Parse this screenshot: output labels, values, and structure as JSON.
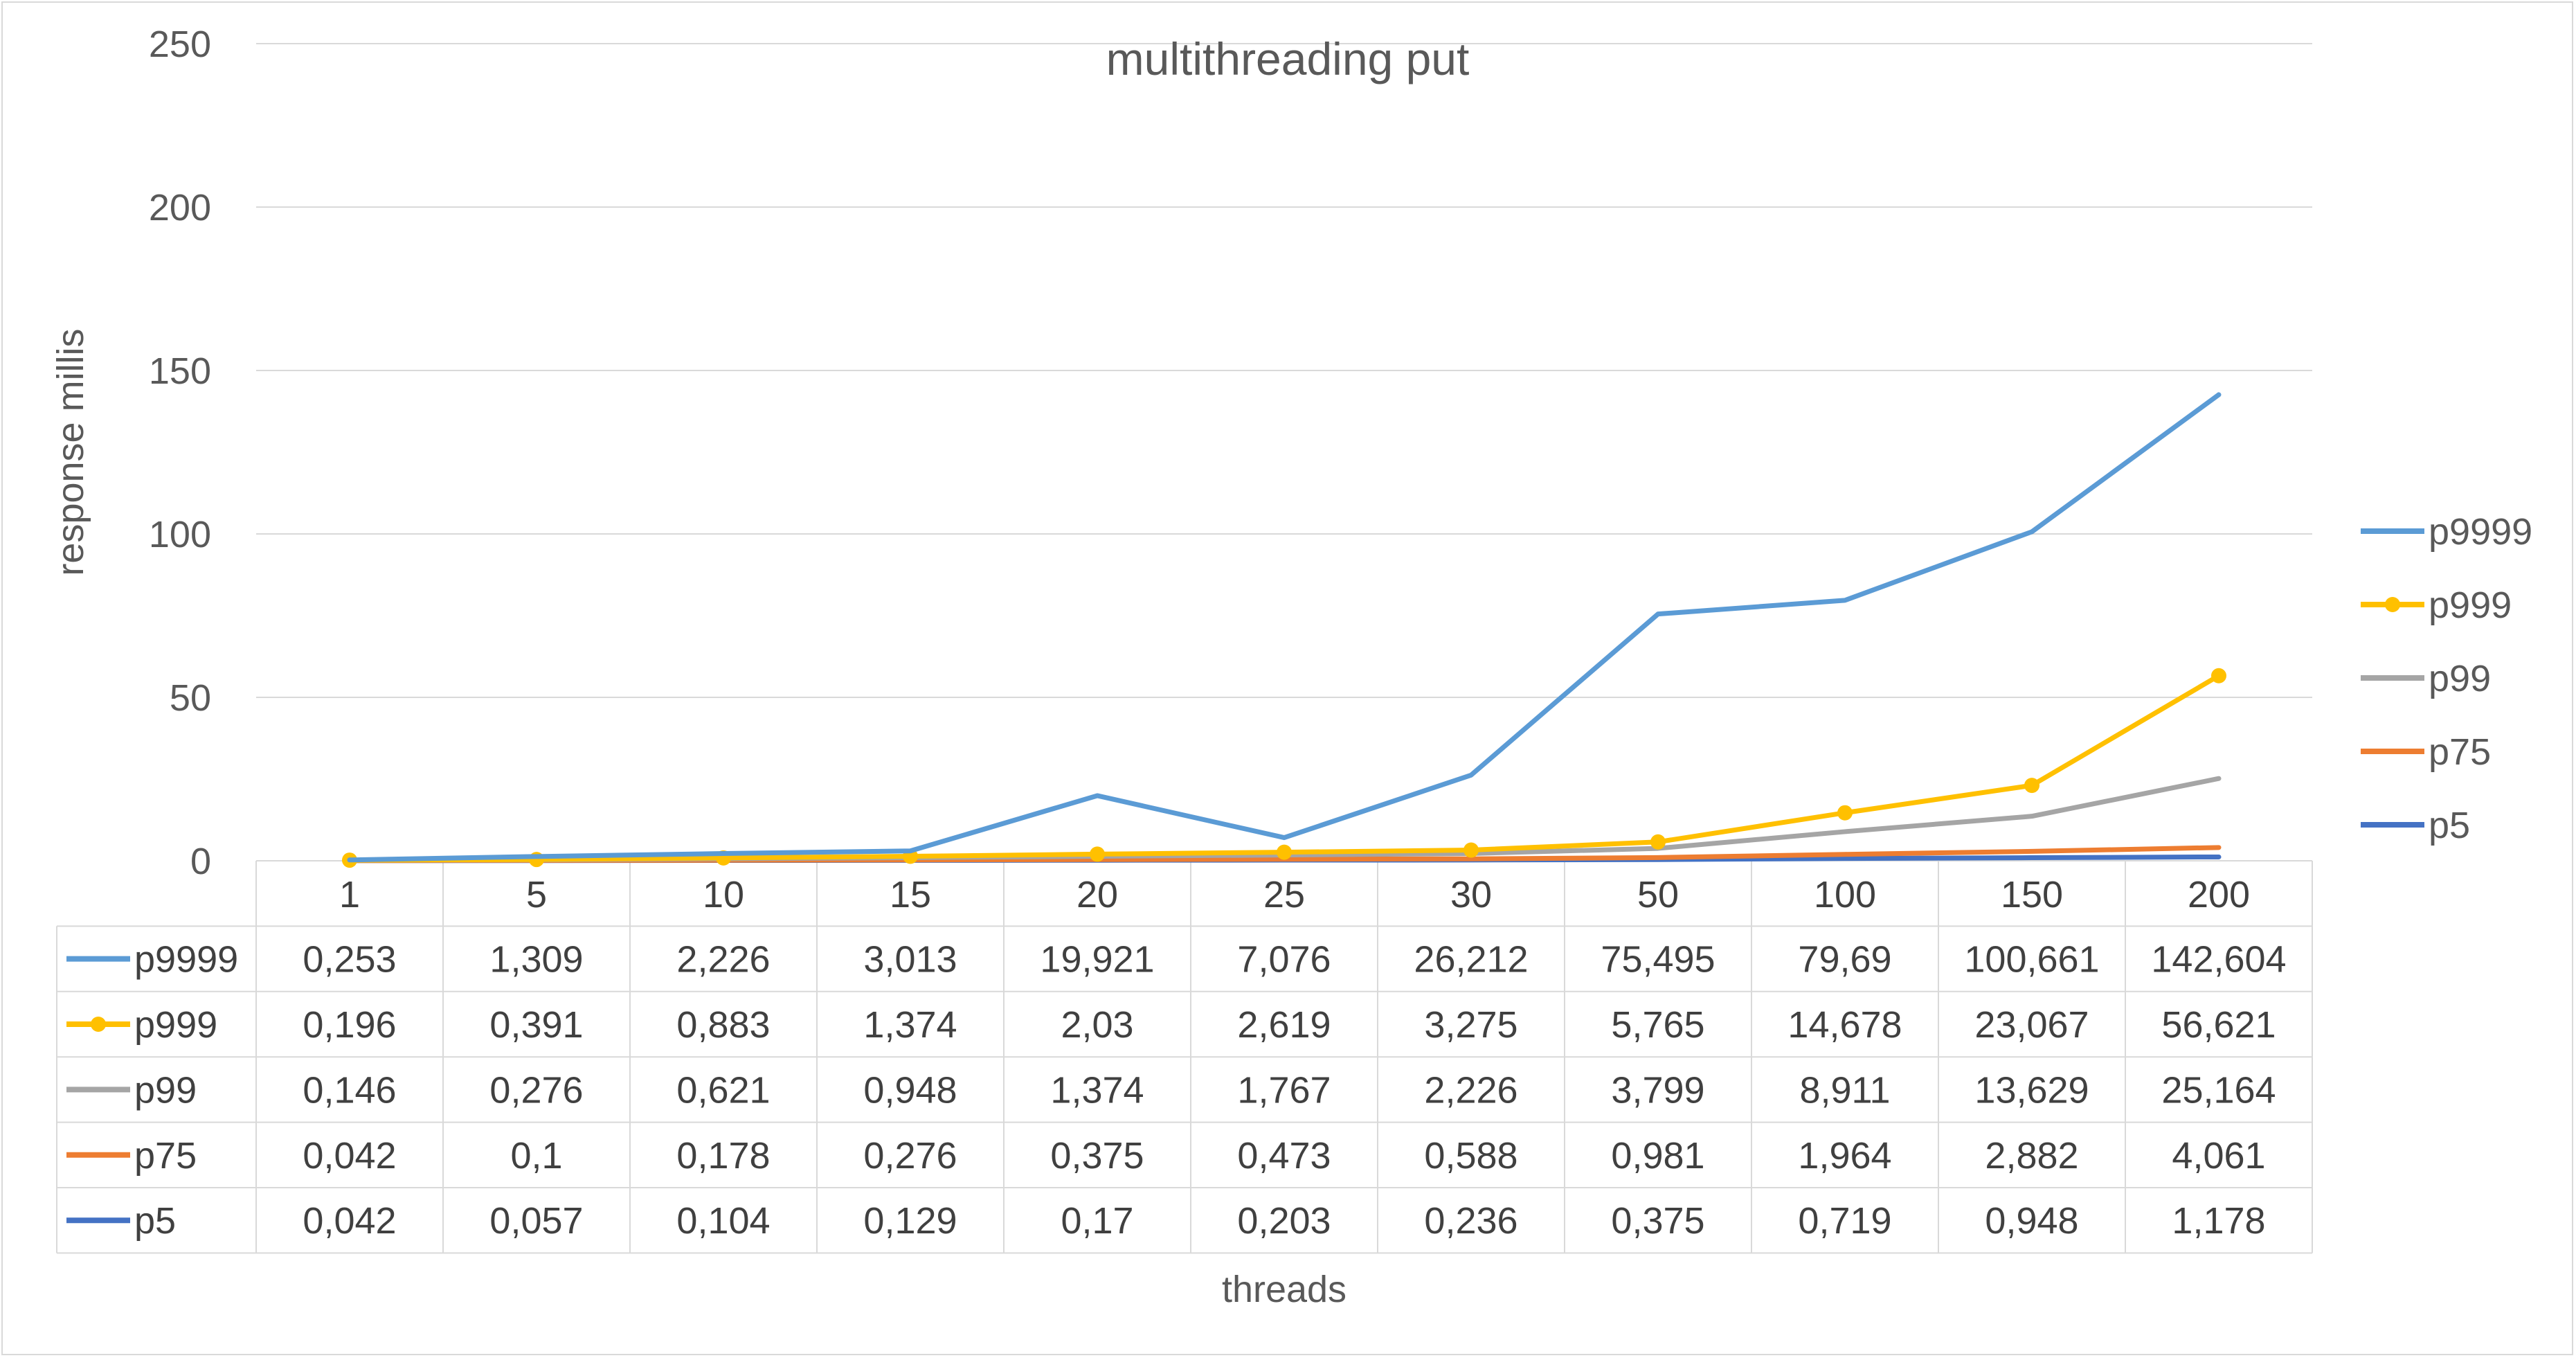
{
  "chart_data": {
    "type": "line",
    "title": "multithreading put",
    "xlabel": "threads",
    "ylabel": "response millis",
    "ylim": [
      0,
      250
    ],
    "yticks": [
      0,
      50,
      100,
      150,
      200,
      250
    ],
    "grid": true,
    "legend_position": "right",
    "data_table": true,
    "categories": [
      "1",
      "5",
      "10",
      "15",
      "20",
      "25",
      "30",
      "50",
      "100",
      "150",
      "200"
    ],
    "series": [
      {
        "name": "p9999",
        "color": "#5b9bd5",
        "marker": false,
        "labels": [
          "0,253",
          "1,309",
          "2,226",
          "3,013",
          "19,921",
          "7,076",
          "26,212",
          "75,495",
          "79,69",
          "100,661",
          "142,604"
        ],
        "values": [
          0.253,
          1.309,
          2.226,
          3.013,
          19.921,
          7.076,
          26.212,
          75.495,
          79.69,
          100.661,
          142.604
        ]
      },
      {
        "name": "p999",
        "color": "#ffc000",
        "marker": true,
        "labels": [
          "0,196",
          "0,391",
          "0,883",
          "1,374",
          "2,03",
          "2,619",
          "3,275",
          "5,765",
          "14,678",
          "23,067",
          "56,621"
        ],
        "values": [
          0.196,
          0.391,
          0.883,
          1.374,
          2.03,
          2.619,
          3.275,
          5.765,
          14.678,
          23.067,
          56.621
        ]
      },
      {
        "name": "p99",
        "color": "#a5a5a5",
        "marker": false,
        "labels": [
          "0,146",
          "0,276",
          "0,621",
          "0,948",
          "1,374",
          "1,767",
          "2,226",
          "3,799",
          "8,911",
          "13,629",
          "25,164"
        ],
        "values": [
          0.146,
          0.276,
          0.621,
          0.948,
          1.374,
          1.767,
          2.226,
          3.799,
          8.911,
          13.629,
          25.164
        ]
      },
      {
        "name": "p75",
        "color": "#ed7d31",
        "marker": false,
        "labels": [
          "0,042",
          "0,1",
          "0,178",
          "0,276",
          "0,375",
          "0,473",
          "0,588",
          "0,981",
          "1,964",
          "2,882",
          "4,061"
        ],
        "values": [
          0.042,
          0.1,
          0.178,
          0.276,
          0.375,
          0.473,
          0.588,
          0.981,
          1.964,
          2.882,
          4.061
        ]
      },
      {
        "name": "p5",
        "color": "#4472c4",
        "marker": false,
        "labels": [
          "0,042",
          "0,057",
          "0,104",
          "0,129",
          "0,17",
          "0,203",
          "0,236",
          "0,375",
          "0,719",
          "0,948",
          "1,178"
        ],
        "values": [
          0.042,
          0.057,
          0.104,
          0.129,
          0.17,
          0.203,
          0.236,
          0.375,
          0.719,
          0.948,
          1.178
        ]
      }
    ]
  }
}
